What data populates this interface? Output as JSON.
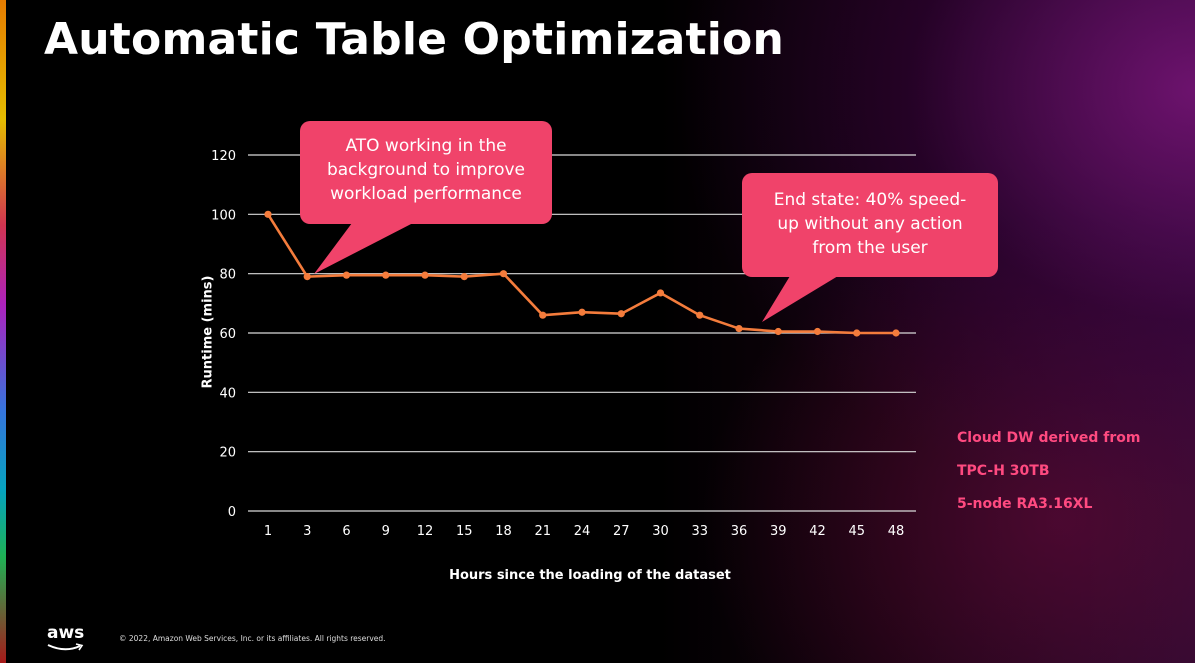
{
  "slide": {
    "title": "Automatic Table Optimization",
    "callout_1": [
      "ATO working in the",
      "background to improve",
      "workload performance"
    ],
    "callout_2": [
      "End state: 40% speed-",
      "up without any action",
      "from the user"
    ],
    "notes": [
      "Cloud DW derived from",
      "TPC-H 30TB",
      "5-node RA3.16XL"
    ],
    "footer": {
      "logo_text": "aws",
      "copyright": "© 2022, Amazon Web Services, Inc. or its affiliates. All rights reserved."
    }
  },
  "colors": {
    "line": "#f47c3c",
    "callout": "#f0436a",
    "note": "#ff4a80",
    "grid": "#d9d9d9"
  },
  "chart_data": {
    "type": "line",
    "title": "",
    "xlabel": "Hours since the loading of the dataset",
    "ylabel": "Runtime (mins)",
    "ylim": [
      0,
      120
    ],
    "yticks": [
      0,
      20,
      40,
      60,
      80,
      100,
      120
    ],
    "categories": [
      "1",
      "3",
      "6",
      "9",
      "12",
      "15",
      "18",
      "21",
      "24",
      "27",
      "30",
      "33",
      "36",
      "39",
      "42",
      "45",
      "48"
    ],
    "series": [
      {
        "values": [
          100,
          79,
          79.5,
          79.5,
          79.5,
          79,
          80,
          66,
          67,
          66.5,
          73.5,
          66,
          61.5,
          60.5,
          60.5,
          60,
          60
        ]
      }
    ],
    "grid": true,
    "legend": "none"
  }
}
